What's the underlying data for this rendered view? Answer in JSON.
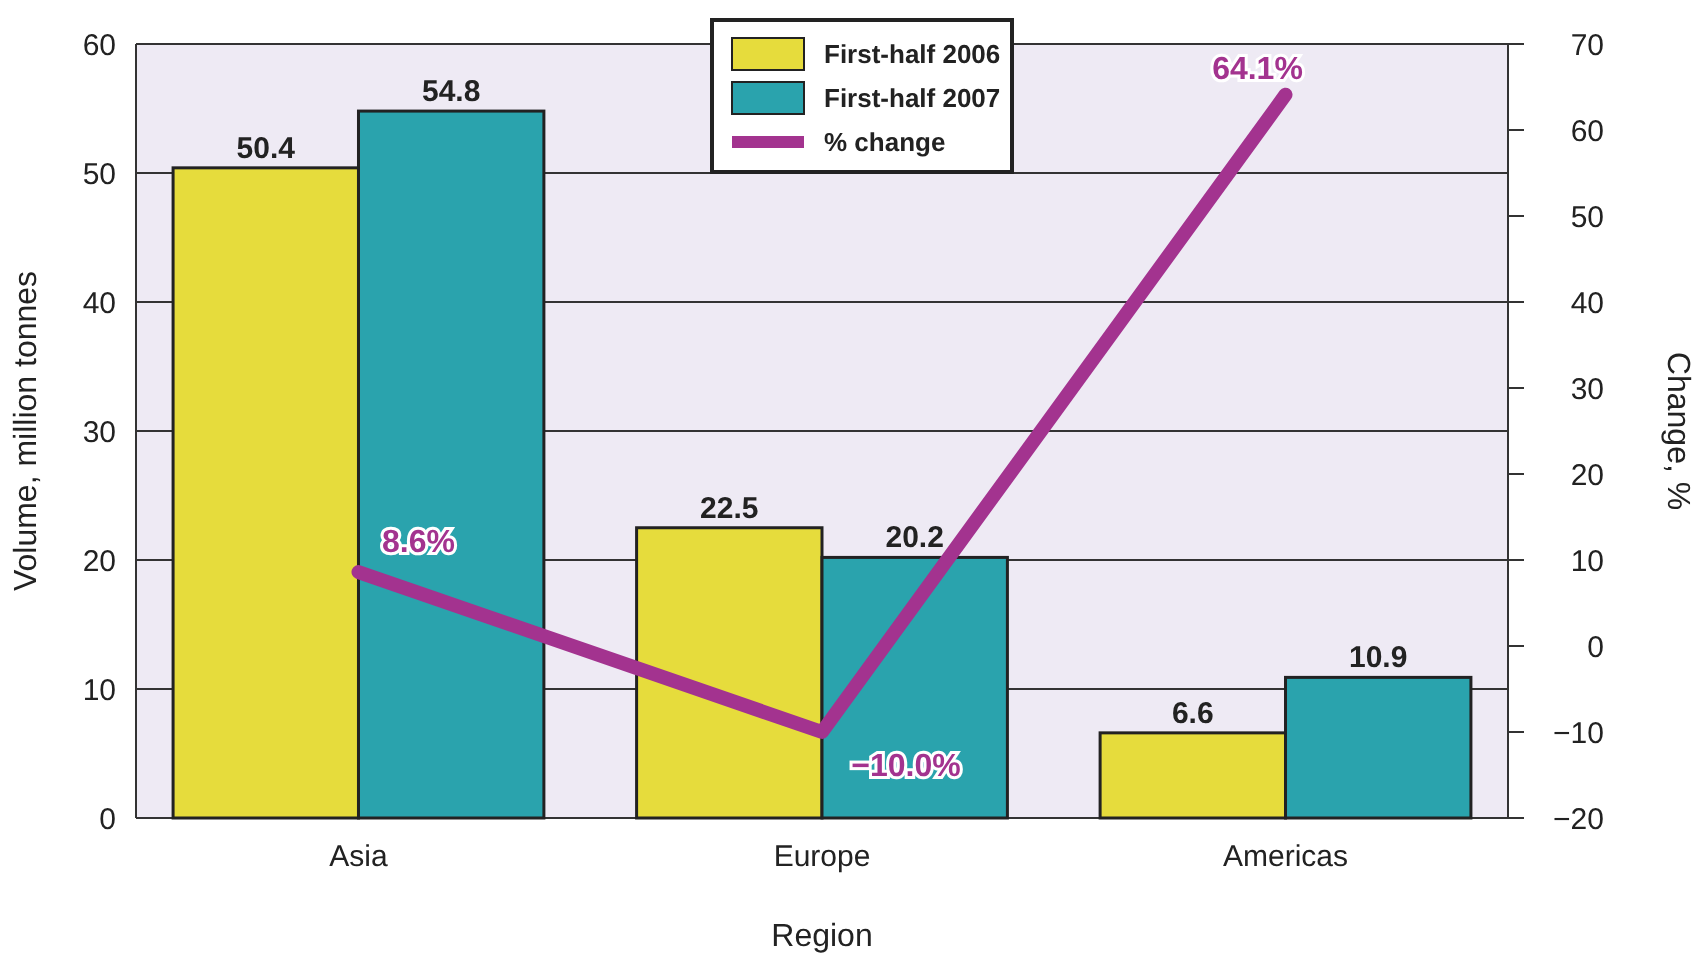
{
  "chart_data": {
    "type": "bar",
    "xlabel": "Region",
    "ylabel": "Volume, million tonnes",
    "y2label": "Change, %",
    "categories": [
      "Asia",
      "Europe",
      "Americas"
    ],
    "series": [
      {
        "name": "First-half 2006",
        "color": "#e6dc3c",
        "values": [
          50.4,
          22.5,
          6.6
        ],
        "value_labels": [
          "50.4",
          "22.5",
          "6.6"
        ]
      },
      {
        "name": "First-half 2007",
        "color": "#2aa3ad",
        "values": [
          54.8,
          20.2,
          10.9
        ],
        "value_labels": [
          "54.8",
          "20.2",
          "10.9"
        ]
      },
      {
        "name": "% change",
        "type": "line",
        "axis": "y2",
        "color": "#a3338f",
        "values": [
          8.6,
          -10.0,
          64.1
        ],
        "value_labels": [
          "8.6%",
          "−10.0%",
          "64.1%"
        ]
      }
    ],
    "ylim": [
      0,
      60
    ],
    "yticks": [
      0,
      10,
      20,
      30,
      40,
      50,
      60
    ],
    "y2lim": [
      -20,
      70
    ],
    "y2ticks": [
      {
        "value": -20,
        "label": "−20"
      },
      {
        "value": -10,
        "label": "−10"
      },
      0,
      10,
      20,
      30,
      40,
      50,
      60,
      70
    ],
    "grid": "y",
    "legend": "top"
  }
}
